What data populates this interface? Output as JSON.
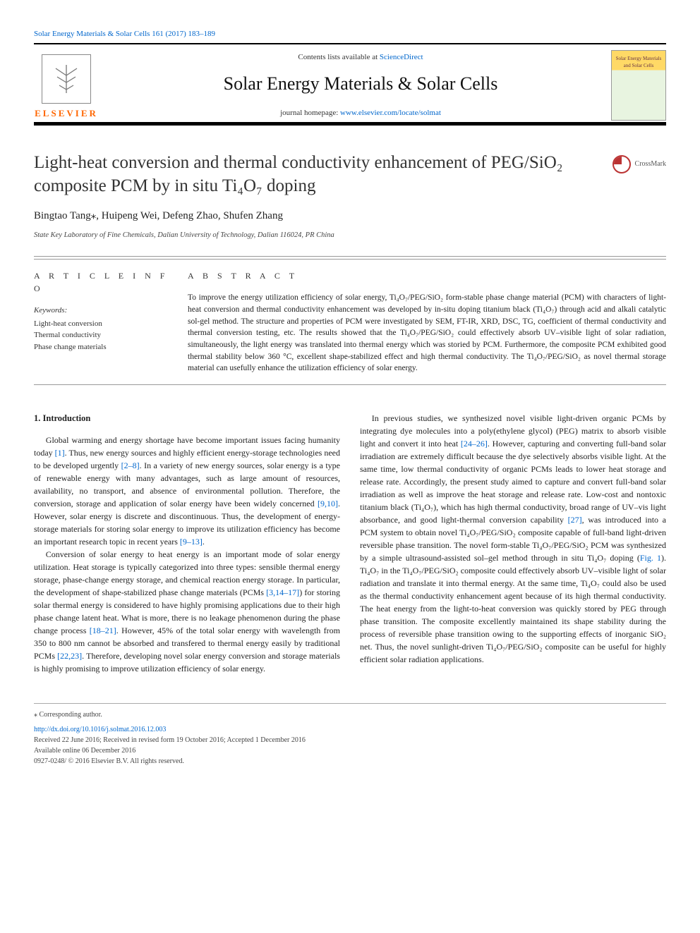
{
  "meta": {
    "citation_line": "Solar Energy Materials & Solar Cells 161 (2017) 183–189",
    "contents_prefix": "Contents lists available at ",
    "contents_link_text": "ScienceDirect",
    "journal_name": "Solar Energy Materials & Solar Cells",
    "homepage_prefix": "journal homepage: ",
    "homepage_url": "www.elsevier.com/locate/solmat",
    "publisher_logo_text": "ELSEVIER",
    "cover_caption": "Solar Energy Materials and Solar Cells"
  },
  "crossmark": {
    "label": "CrossMark"
  },
  "title": "Light-heat conversion and thermal conductivity enhancement of PEG/SiO₂ composite PCM by in situ Ti₄O₇ doping",
  "authors": "Bingtao Tang⁎, Huipeng Wei, Defeng Zhao, Shufen Zhang",
  "affiliation": "State Key Laboratory of Fine Chemicals, Dalian University of Technology, Dalian 116024, PR China",
  "article_info": {
    "heading": "A R T I C L E  I N F O",
    "keywords_label": "Keywords:",
    "keywords": [
      "Light-heat conversion",
      "Thermal conductivity",
      "Phase change materials"
    ]
  },
  "abstract": {
    "heading": "A B S T R A C T",
    "text": "To improve the energy utilization efficiency of solar energy, Ti₄O₇/PEG/SiO₂ form-stable phase change material (PCM) with characters of light-heat conversion and thermal conductivity enhancement was developed by in-situ doping titanium black (Ti₄O₇) through acid and alkali catalytic sol-gel method. The structure and properties of PCM were investigated by SEM, FT-IR, XRD, DSC, TG, coefficient of thermal conductivity and thermal conversion testing, etc. The results showed that the Ti₄O₇/PEG/SiO₂ could effectively absorb UV–visible light of solar radiation, simultaneously, the light energy was translated into thermal energy which was storied by PCM. Furthermore, the composite PCM exhibited good thermal stability below 360 °C, excellent shape-stabilized effect and high thermal conductivity. The Ti₄O₇/PEG/SiO₂ as novel thermal storage material can usefully enhance the utilization efficiency of solar energy."
  },
  "body": {
    "section_heading": "1. Introduction",
    "p1": "Global warming and energy shortage have become important issues facing humanity today [1]. Thus, new energy sources and highly efficient energy-storage technologies need to be developed urgently [2–8]. In a variety of new energy sources, solar energy is a type of renewable energy with many advantages, such as large amount of resources, availability, no transport, and absence of environmental pollution. Therefore, the conversion, storage and application of solar energy have been widely concerned [9,10]. However, solar energy is discrete and discontinuous. Thus, the development of energy-storage materials for storing solar energy to improve its utilization efficiency has become an important research topic in recent years [9–13].",
    "p2": "Conversion of solar energy to heat energy is an important mode of solar energy utilization. Heat storage is typically categorized into three types: sensible thermal energy storage, phase-change energy storage, and chemical reaction energy storage. In particular, the development of shape-stabilized phase change materials (PCMs [3,14–17]) for storing solar thermal energy is considered to have highly promising applications due to their high phase change latent heat. What is more, there is no leakage phenomenon during the phase change process [18–21]. However, 45% of the total solar energy with wavelength from 350 to 800 nm cannot be absorbed and transfered to thermal energy easily by traditional PCMs [22,23]. Therefore, developing novel solar energy conversion and storage materials is highly promising to improve utilization efficiency of solar energy.",
    "p3": "In previous studies, we synthesized novel visible light-driven organic PCMs by integrating dye molecules into a poly(ethylene glycol) (PEG) matrix to absorb visible light and convert it into heat [24–26]. However, capturing and converting full-band solar irradiation are extremely difficult because the dye selectively absorbs visible light. At the same time, low thermal conductivity of organic PCMs leads to lower heat storage and release rate. Accordingly, the present study aimed to capture and convert full-band solar irradiation as well as improve the heat storage and release rate. Low-cost and nontoxic titanium black (Ti₄O₇), which has high thermal conductivity, broad range of UV–vis light absorbance, and good light-thermal conversion capability [27], was introduced into a PCM system to obtain novel Ti₄O₇/PEG/SiO₂ composite capable of full-band light-driven reversible phase transition. The novel form-stable Ti₄O₇/PEG/SiO₂ PCM was synthesized by a simple ultrasound-assisted sol–gel method through in situ Ti₄O₇ doping (Fig. 1). Ti₄O₇ in the Ti₄O₇/PEG/SiO₂ composite could effectively absorb UV–visible light of solar radiation and translate it into thermal energy. At the same time, Ti₄O₇ could also be used as the thermal conductivity enhancement agent because of its high thermal conductivity. The heat energy from the light-to-heat conversion was quickly stored by PEG through phase transition. The composite excellently maintained its shape stability during the process of reversible phase transition owing to the supporting effects of inorganic SiO₂ net. Thus, the novel sunlight-driven Ti₄O₇/PEG/SiO₂ composite can be useful for highly efficient solar radiation applications."
  },
  "footer": {
    "corresponding": "⁎ Corresponding author.",
    "doi": "http://dx.doi.org/10.1016/j.solmat.2016.12.003",
    "history": "Received 22 June 2016; Received in revised form 19 October 2016; Accepted 1 December 2016",
    "online": "Available online 06 December 2016",
    "copyright": "0927-0248/ © 2016 Elsevier B.V. All rights reserved."
  },
  "colors": {
    "link": "#0066cc",
    "elsevier_orange": "#ff6600",
    "rule": "#000000",
    "text": "#333333"
  }
}
